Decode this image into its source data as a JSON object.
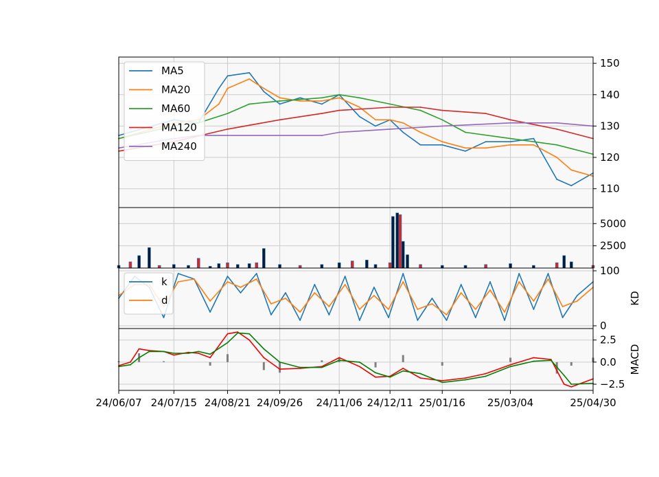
{
  "chart_data": [
    {
      "panel": "price",
      "type": "line",
      "ylim": [
        104,
        152
      ],
      "yticks": [
        110,
        120,
        130,
        140,
        150
      ],
      "grid": true,
      "legend_placement": "top-left",
      "series": [
        {
          "name": "MA5",
          "color": "#1f77b4",
          "x": [
            "24/06/07",
            "24/07/15",
            "24/08/01",
            "24/08/15",
            "24/08/21",
            "24/09/05",
            "24/09/15",
            "24/09/26",
            "24/10/10",
            "24/10/25",
            "24/11/06",
            "24/11/20",
            "24/12/01",
            "24/12/11",
            "24/12/20",
            "25/01/01",
            "25/01/16",
            "25/02/01",
            "25/02/15",
            "25/03/04",
            "25/03/20",
            "25/04/05",
            "25/04/15",
            "25/04/30"
          ],
          "y": [
            127,
            132,
            131,
            142,
            146,
            147,
            141,
            137,
            139,
            137,
            140,
            133,
            130,
            132,
            128,
            124,
            124,
            122,
            125,
            125,
            126,
            113,
            111,
            115
          ]
        },
        {
          "name": "MA20",
          "color": "#ff7f0e",
          "x": [
            "24/06/07",
            "24/07/15",
            "24/08/01",
            "24/08/15",
            "24/08/21",
            "24/09/05",
            "24/09/15",
            "24/09/26",
            "24/10/10",
            "24/10/25",
            "24/11/06",
            "24/11/20",
            "24/12/01",
            "24/12/11",
            "24/12/20",
            "25/01/01",
            "25/01/16",
            "25/02/01",
            "25/02/15",
            "25/03/04",
            "25/03/20",
            "25/04/05",
            "25/04/15",
            "25/04/30"
          ],
          "y": [
            126,
            131,
            132,
            137,
            142,
            145,
            142,
            139,
            138,
            138,
            139,
            136,
            132,
            132,
            131,
            128,
            125,
            123,
            123,
            124,
            124,
            120,
            116,
            114
          ]
        },
        {
          "name": "MA60",
          "color": "#2ca02c",
          "x": [
            "24/06/07",
            "24/07/15",
            "24/08/01",
            "24/08/21",
            "24/09/05",
            "24/09/26",
            "24/10/25",
            "24/11/06",
            "24/11/20",
            "24/12/11",
            "25/01/01",
            "25/01/16",
            "25/02/01",
            "25/03/04",
            "25/04/05",
            "25/04/30"
          ],
          "y": [
            126,
            130,
            131,
            134,
            137,
            138,
            139,
            140,
            139,
            137,
            135,
            132,
            128,
            126,
            124,
            121
          ]
        },
        {
          "name": "MA120",
          "color": "#d62728",
          "x": [
            "24/06/07",
            "24/07/15",
            "24/08/21",
            "24/09/26",
            "24/10/25",
            "24/11/06",
            "24/12/11",
            "25/01/01",
            "25/01/16",
            "25/02/15",
            "25/03/04",
            "25/04/05",
            "25/04/30"
          ],
          "y": [
            122,
            125,
            129,
            132,
            134,
            135,
            136,
            136,
            135,
            134,
            132,
            129,
            126
          ]
        },
        {
          "name": "MA240",
          "color": "#9467bd",
          "x": [
            "24/06/07",
            "24/07/15",
            "24/08/01",
            "24/08/21",
            "24/10/25",
            "24/11/06",
            "24/12/11",
            "25/01/16",
            "25/03/04",
            "25/04/05",
            "25/04/30"
          ],
          "y": [
            123,
            126,
            127,
            127,
            127,
            128,
            129,
            130,
            131,
            131,
            130
          ]
        }
      ]
    },
    {
      "panel": "volume",
      "type": "bar",
      "ylim": [
        0,
        6800
      ],
      "yticks": [
        2500,
        5000
      ],
      "grid": true,
      "bars": {
        "x": [
          "24/06/07",
          "24/06/15",
          "24/06/21",
          "24/06/28",
          "24/07/05",
          "24/07/15",
          "24/07/25",
          "24/08/01",
          "24/08/09",
          "24/08/15",
          "24/08/21",
          "24/08/28",
          "24/09/05",
          "24/09/10",
          "24/09/15",
          "24/09/26",
          "24/10/10",
          "24/10/25",
          "24/11/06",
          "24/11/15",
          "24/11/25",
          "24/12/01",
          "24/12/11",
          "24/12/13",
          "24/12/16",
          "24/12/18",
          "24/12/20",
          "24/12/23",
          "25/01/01",
          "25/01/16",
          "25/02/01",
          "25/02/15",
          "25/03/04",
          "25/03/20",
          "25/04/05",
          "25/04/10",
          "25/04/15",
          "25/04/30"
        ],
        "y": [
          300,
          700,
          1400,
          2300,
          300,
          400,
          300,
          1100,
          200,
          500,
          600,
          400,
          500,
          600,
          2200,
          400,
          300,
          400,
          600,
          800,
          900,
          400,
          600,
          5800,
          6200,
          6000,
          3000,
          1500,
          400,
          300,
          300,
          400,
          500,
          300,
          600,
          1400,
          700,
          300
        ]
      }
    },
    {
      "panel": "kd",
      "type": "line",
      "ylabel": "KD",
      "ylim": [
        -5,
        105
      ],
      "yticks": [
        0,
        100
      ],
      "grid": true,
      "legend_placement": "top-left",
      "series": [
        {
          "name": "k",
          "color": "#1f77b4",
          "x": [
            "24/06/07",
            "24/06/18",
            "24/06/28",
            "24/07/08",
            "24/07/18",
            "24/07/29",
            "24/08/09",
            "24/08/21",
            "24/08/30",
            "24/09/10",
            "24/09/20",
            "24/09/30",
            "24/10/10",
            "24/10/20",
            "24/10/30",
            "24/11/10",
            "24/11/20",
            "24/11/30",
            "24/12/10",
            "24/12/20",
            "24/12/30",
            "25/01/09",
            "25/01/19",
            "25/01/29",
            "25/02/08",
            "25/02/18",
            "25/02/28",
            "25/03/10",
            "25/03/20",
            "25/03/30",
            "25/04/09",
            "25/04/19",
            "25/04/30"
          ],
          "y": [
            50,
            90,
            70,
            15,
            95,
            85,
            25,
            90,
            60,
            95,
            20,
            60,
            10,
            75,
            20,
            90,
            10,
            70,
            15,
            95,
            10,
            50,
            10,
            75,
            15,
            80,
            10,
            95,
            30,
            95,
            15,
            55,
            80
          ]
        },
        {
          "name": "d",
          "color": "#ff7f0e",
          "x": [
            "24/06/07",
            "24/06/18",
            "24/06/28",
            "24/07/08",
            "24/07/18",
            "24/07/29",
            "24/08/09",
            "24/08/21",
            "24/08/30",
            "24/09/10",
            "24/09/20",
            "24/09/30",
            "24/10/10",
            "24/10/20",
            "24/10/30",
            "24/11/10",
            "24/11/20",
            "24/11/30",
            "24/12/10",
            "24/12/20",
            "24/12/30",
            "25/01/09",
            "25/01/19",
            "25/01/29",
            "25/02/08",
            "25/02/18",
            "25/02/28",
            "25/03/10",
            "25/03/20",
            "25/03/30",
            "25/04/09",
            "25/04/19",
            "25/04/30"
          ],
          "y": [
            55,
            75,
            75,
            35,
            80,
            85,
            45,
            80,
            70,
            85,
            40,
            50,
            25,
            60,
            35,
            75,
            30,
            55,
            30,
            80,
            30,
            40,
            20,
            60,
            30,
            65,
            25,
            80,
            45,
            85,
            35,
            45,
            70
          ]
        }
      ]
    },
    {
      "panel": "macd",
      "type": "line",
      "ylabel": "MACD",
      "ylim": [
        -3.2,
        3.8
      ],
      "yticks": [
        -2.5,
        0.0,
        2.5
      ],
      "grid": true,
      "series": [
        {
          "name": "",
          "color": "#ee0000",
          "x": [
            "24/06/07",
            "24/06/15",
            "24/06/21",
            "24/06/28",
            "24/07/08",
            "24/07/15",
            "24/07/25",
            "24/08/01",
            "24/08/09",
            "24/08/21",
            "24/08/28",
            "24/09/05",
            "24/09/15",
            "24/09/26",
            "24/10/10",
            "24/10/25",
            "24/11/06",
            "24/11/20",
            "24/12/01",
            "24/12/11",
            "24/12/20",
            "25/01/01",
            "25/01/16",
            "25/02/01",
            "25/02/15",
            "25/03/04",
            "25/03/20",
            "25/04/01",
            "25/04/10",
            "25/04/15",
            "25/04/30"
          ],
          "y": [
            -0.4,
            0.0,
            1.5,
            1.3,
            1.2,
            0.8,
            1.1,
            1.0,
            0.5,
            3.2,
            3.4,
            2.5,
            0.5,
            -0.8,
            -0.7,
            -0.5,
            0.5,
            -0.5,
            -1.7,
            -1.6,
            -0.7,
            -1.8,
            -2.1,
            -1.8,
            -1.3,
            -0.3,
            0.5,
            0.3,
            -2.5,
            -2.8,
            -1.9
          ]
        },
        {
          "name": "",
          "color": "#008000",
          "x": [
            "24/06/07",
            "24/06/15",
            "24/06/21",
            "24/06/28",
            "24/07/08",
            "24/07/15",
            "24/07/25",
            "24/08/01",
            "24/08/09",
            "24/08/21",
            "24/08/28",
            "24/09/05",
            "24/09/15",
            "24/09/26",
            "24/10/10",
            "24/10/25",
            "24/11/06",
            "24/11/20",
            "24/12/01",
            "24/12/11",
            "24/12/20",
            "25/01/01",
            "25/01/16",
            "25/02/01",
            "25/02/15",
            "25/03/04",
            "25/03/20",
            "25/04/01",
            "25/04/10",
            "25/04/15",
            "25/04/30"
          ],
          "y": [
            -0.5,
            -0.3,
            0.5,
            1.2,
            1.2,
            1.0,
            1.0,
            1.2,
            0.9,
            2.2,
            3.3,
            3.2,
            1.5,
            0.0,
            -0.6,
            -0.6,
            0.2,
            0.0,
            -1.2,
            -1.7,
            -1.0,
            -1.3,
            -2.3,
            -2.0,
            -1.6,
            -0.5,
            0.1,
            0.2,
            -1.5,
            -2.5,
            -2.4
          ]
        }
      ],
      "histogram": {
        "x": [
          "24/06/07",
          "24/06/21",
          "24/07/08",
          "24/08/09",
          "24/08/21",
          "24/09/15",
          "24/09/26",
          "24/10/25",
          "24/11/06",
          "24/12/01",
          "24/12/20",
          "25/01/16",
          "25/03/04",
          "25/04/05",
          "25/04/15",
          "25/04/30"
        ],
        "y": [
          0.1,
          1.0,
          0.1,
          -0.4,
          0.9,
          -0.9,
          -1.2,
          0.2,
          0.5,
          -0.6,
          0.8,
          -0.4,
          0.5,
          -1.3,
          -0.4,
          0.5
        ]
      }
    }
  ],
  "x_axis": {
    "tick_labels": [
      "24/06/07",
      "24/07/15",
      "24/08/21",
      "24/09/26",
      "24/11/06",
      "24/12/11",
      "25/01/16",
      "25/03/04",
      "25/04/30"
    ]
  }
}
